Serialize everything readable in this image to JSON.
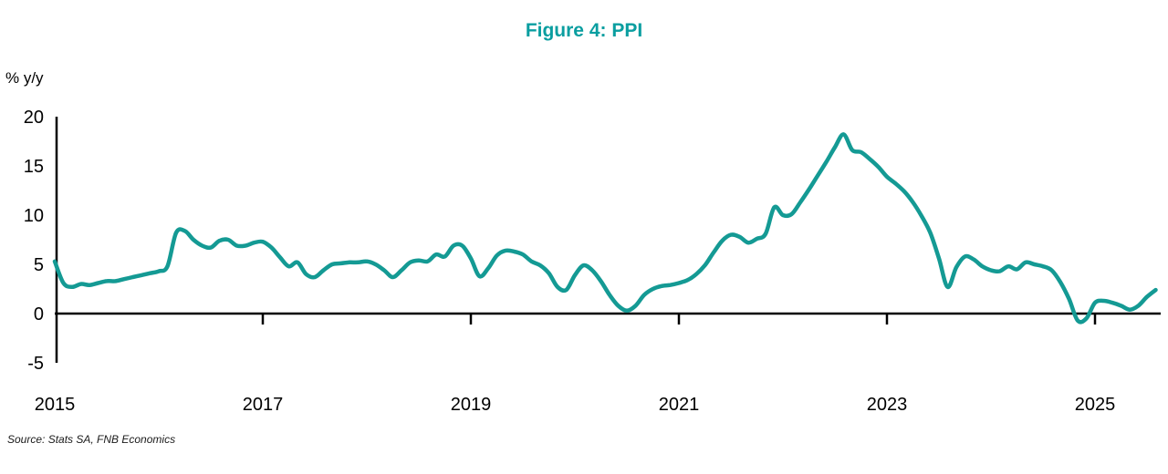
{
  "title": "Figure 4: PPI",
  "y_axis_unit_label": "% y/y",
  "source": "Source: Stats SA, FNB Economics",
  "colors": {
    "line": "#149a94",
    "title": "#0a9ea0",
    "axis": "#000000",
    "text": "#000000"
  },
  "chart_data": {
    "type": "line",
    "title": "Figure 4: PPI",
    "series_name": "PPI",
    "ylabel": "% y/y",
    "xlabel": "",
    "frequency": "monthly",
    "x_start": "2015-01",
    "x_end": "2025-08",
    "x_tick_labels": [
      "2015",
      "2017",
      "2019",
      "2021",
      "2023",
      "2025"
    ],
    "y_ticks": [
      20,
      15,
      10,
      5,
      0,
      -5
    ],
    "ylim": [
      -5,
      20
    ],
    "grid": false,
    "legend": "none",
    "values": [
      5.3,
      3.1,
      2.7,
      3.0,
      2.9,
      3.1,
      3.3,
      3.3,
      3.5,
      3.7,
      3.9,
      4.1,
      4.3,
      4.8,
      8.2,
      8.4,
      7.5,
      6.9,
      6.7,
      7.4,
      7.5,
      6.9,
      6.9,
      7.2,
      7.3,
      6.7,
      5.7,
      4.8,
      5.2,
      4.0,
      3.7,
      4.4,
      5.0,
      5.1,
      5.2,
      5.2,
      5.3,
      5.0,
      4.4,
      3.7,
      4.4,
      5.2,
      5.4,
      5.3,
      6.0,
      5.8,
      6.9,
      6.9,
      5.6,
      3.8,
      4.6,
      5.9,
      6.4,
      6.3,
      6.0,
      5.3,
      4.9,
      4.1,
      2.7,
      2.4,
      3.9,
      4.9,
      4.4,
      3.3,
      1.9,
      0.8,
      0.3,
      0.8,
      1.9,
      2.5,
      2.8,
      2.9,
      3.1,
      3.4,
      4.0,
      4.9,
      6.2,
      7.4,
      8.0,
      7.8,
      7.2,
      7.6,
      8.1,
      10.8,
      10.0,
      10.1,
      11.3,
      12.6,
      14.0,
      15.4,
      16.9,
      18.2,
      16.6,
      16.4,
      15.7,
      14.9,
      13.9,
      13.2,
      12.4,
      11.3,
      9.9,
      8.2,
      5.6,
      2.7,
      4.7,
      5.8,
      5.5,
      4.8,
      4.4,
      4.3,
      4.8,
      4.5,
      5.2,
      5.0,
      4.8,
      4.4,
      3.2,
      1.5,
      -0.7,
      -0.5,
      1.1,
      1.3,
      1.1,
      0.8,
      0.4,
      0.8,
      1.7,
      2.4
    ]
  }
}
